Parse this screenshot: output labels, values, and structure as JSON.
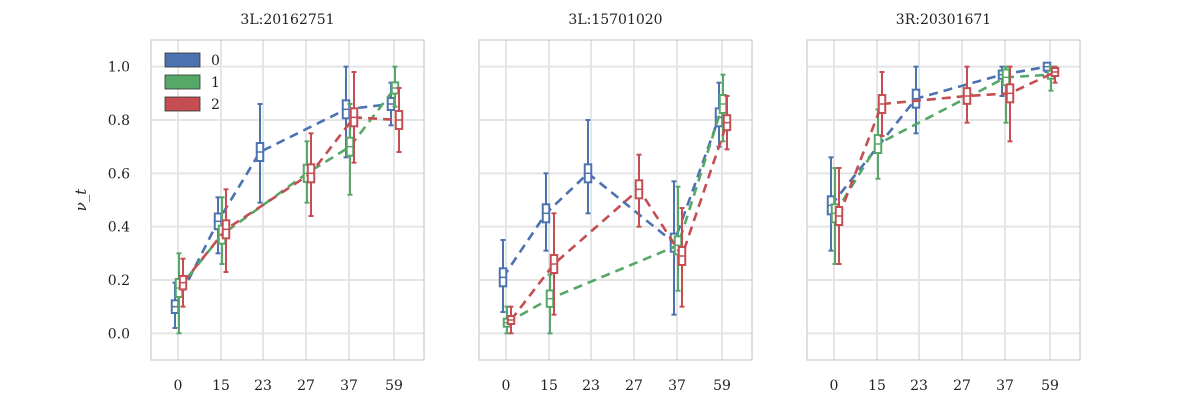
{
  "chart_data": {
    "type": "line",
    "ylabel": "ν_t",
    "ylim": [
      -0.1,
      1.1
    ],
    "y_ticks": [
      "0.0",
      "0.2",
      "0.4",
      "0.6",
      "0.8",
      "1.0"
    ],
    "categories": [
      "0",
      "15",
      "23",
      "27",
      "37",
      "59"
    ],
    "grid": true,
    "legend": {
      "placement": "top-left",
      "entries": [
        "0",
        "1",
        "2"
      ]
    },
    "colors": {
      "0": "#4c72b0",
      "1": "#55a868",
      "2": "#c44e52"
    },
    "panels": [
      {
        "title": "3L:20162751",
        "series": [
          {
            "name": "0",
            "x": [
              "0",
              "15",
              "23",
              "37",
              "59"
            ],
            "values": [
              0.1,
              0.42,
              0.68,
              0.84,
              0.86
            ],
            "err_low": [
              0.02,
              0.3,
              0.49,
              0.66,
              0.78
            ],
            "err_high": [
              0.19,
              0.51,
              0.86,
              1.0,
              0.94
            ]
          },
          {
            "name": "1",
            "x": [
              "0",
              "15",
              "27",
              "37",
              "59"
            ],
            "values": [
              0.17,
              0.37,
              0.6,
              0.7,
              0.92
            ],
            "err_low": [
              0.0,
              0.26,
              0.49,
              0.52,
              0.85
            ],
            "err_high": [
              0.3,
              0.51,
              0.72,
              0.86,
              1.0
            ]
          },
          {
            "name": "2",
            "x": [
              "0",
              "15",
              "27",
              "37",
              "59"
            ],
            "values": [
              0.19,
              0.39,
              0.6,
              0.81,
              0.8
            ],
            "err_low": [
              0.1,
              0.23,
              0.44,
              0.64,
              0.68
            ],
            "err_high": [
              0.28,
              0.54,
              0.75,
              0.98,
              0.92
            ]
          }
        ]
      },
      {
        "title": "3L:15701020",
        "series": [
          {
            "name": "0",
            "x": [
              "0",
              "15",
              "23",
              "37",
              "59"
            ],
            "values": [
              0.21,
              0.45,
              0.6,
              0.34,
              0.81
            ],
            "err_low": [
              0.08,
              0.31,
              0.45,
              0.07,
              0.7
            ],
            "err_high": [
              0.35,
              0.6,
              0.8,
              0.57,
              0.94
            ]
          },
          {
            "name": "1",
            "x": [
              "0",
              "15",
              "37",
              "59"
            ],
            "values": [
              0.04,
              0.13,
              0.33,
              0.86
            ],
            "err_low": [
              0.0,
              0.0,
              0.16,
              0.72
            ],
            "err_high": [
              0.1,
              0.22,
              0.55,
              0.97
            ]
          },
          {
            "name": "2",
            "x": [
              "0",
              "15",
              "27",
              "37",
              "59"
            ],
            "values": [
              0.05,
              0.26,
              0.54,
              0.29,
              0.79
            ],
            "err_low": [
              0.0,
              0.07,
              0.4,
              0.1,
              0.69
            ],
            "err_high": [
              0.1,
              0.45,
              0.67,
              0.47,
              0.89
            ]
          }
        ]
      },
      {
        "title": "3R:20301671",
        "series": [
          {
            "name": "0",
            "x": [
              "0",
              "23",
              "37",
              "59"
            ],
            "values": [
              0.48,
              0.88,
              0.97,
              1.0
            ],
            "err_low": [
              0.31,
              0.75,
              0.89,
              0.98
            ],
            "err_high": [
              0.66,
              1.0,
              1.0,
              1.0
            ]
          },
          {
            "name": "1",
            "x": [
              "0",
              "15",
              "37",
              "59"
            ],
            "values": [
              0.45,
              0.71,
              0.96,
              0.97
            ],
            "err_low": [
              0.26,
              0.58,
              0.79,
              0.91
            ],
            "err_high": [
              0.62,
              0.84,
              1.0,
              1.0
            ]
          },
          {
            "name": "2",
            "x": [
              "0",
              "15",
              "27",
              "37",
              "59"
            ],
            "values": [
              0.44,
              0.86,
              0.89,
              0.9,
              0.98
            ],
            "err_low": [
              0.26,
              0.74,
              0.79,
              0.72,
              0.94
            ],
            "err_high": [
              0.62,
              0.98,
              1.0,
              1.0,
              1.0
            ]
          }
        ]
      }
    ]
  }
}
